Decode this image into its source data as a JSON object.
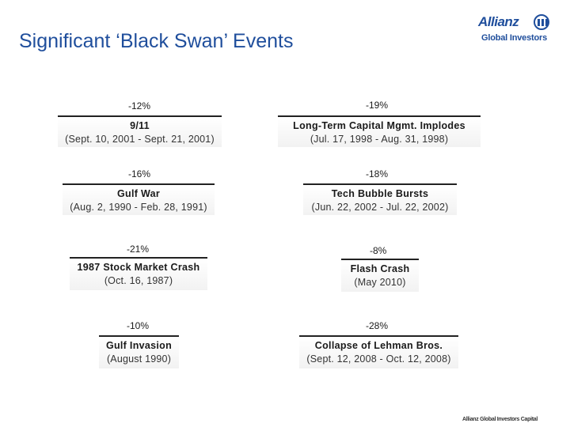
{
  "header": {
    "title": "Significant ‘Black Swan’ Events",
    "logo_word": "Allianz",
    "logo_sub": "Global Investors"
  },
  "events": [
    {
      "pct": "-12%",
      "name": "9/11",
      "dates": "(Sept. 10, 2001 - Sept. 21, 2001)"
    },
    {
      "pct": "-19%",
      "name": "Long-Term Capital Mgmt. Implodes",
      "dates": "(Jul. 17, 1998 - Aug. 31, 1998)"
    },
    {
      "pct": "-16%",
      "name": "Gulf War",
      "dates": "(Aug. 2, 1990 - Feb. 28, 1991)"
    },
    {
      "pct": "-18%",
      "name": "Tech Bubble Bursts",
      "dates": "(Jun. 22, 2002 - Jul. 22, 2002)"
    },
    {
      "pct": "-21%",
      "name": "1987 Stock Market Crash",
      "dates": "(Oct. 16, 1987)"
    },
    {
      "pct": "-8%",
      "name": "Flash Crash",
      "dates": "(May 2010)"
    },
    {
      "pct": "-10%",
      "name": "Gulf Invasion",
      "dates": "(August 1990)"
    },
    {
      "pct": "-28%",
      "name": "Collapse of Lehman Bros.",
      "dates": "(Sept. 12, 2008 - Oct. 12, 2008)"
    }
  ],
  "footer": {
    "text": "Allianz Global Investors Capital"
  }
}
